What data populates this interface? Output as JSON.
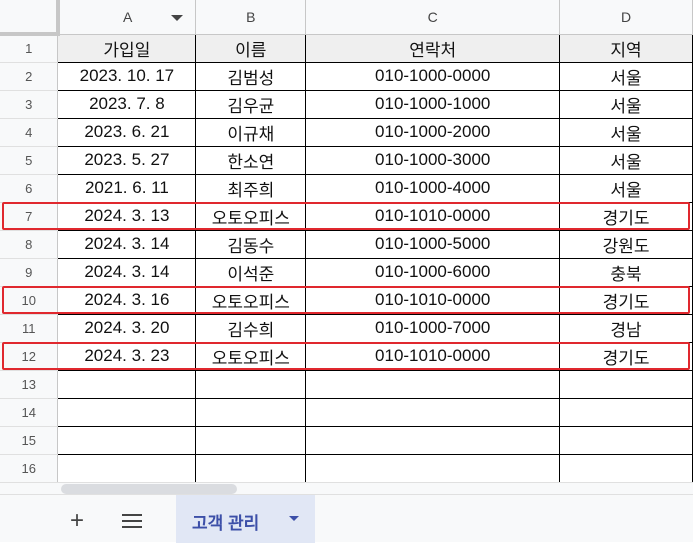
{
  "columns": [
    "A",
    "B",
    "C",
    "D"
  ],
  "rows": [
    [
      "가입일",
      "이름",
      "연락처",
      "지역"
    ],
    [
      "2023. 10. 17",
      "김범성",
      "010-1000-0000",
      "서울"
    ],
    [
      "2023. 7. 8",
      "김우균",
      "010-1000-1000",
      "서울"
    ],
    [
      "2023. 6. 21",
      "이규채",
      "010-1000-2000",
      "서울"
    ],
    [
      "2023. 5. 27",
      "한소연",
      "010-1000-3000",
      "서울"
    ],
    [
      "2021. 6. 11",
      "최주희",
      "010-1000-4000",
      "서울"
    ],
    [
      "2024. 3. 13",
      "오토오피스",
      "010-1010-0000",
      "경기도"
    ],
    [
      "2024. 3. 14",
      "김동수",
      "010-1000-5000",
      "강원도"
    ],
    [
      "2024. 3. 14",
      "이석준",
      "010-1000-6000",
      "충북"
    ],
    [
      "2024. 3. 16",
      "오토오피스",
      "010-1010-0000",
      "경기도"
    ],
    [
      "2024. 3. 20",
      "김수희",
      "010-1000-7000",
      "경남"
    ],
    [
      "2024. 3. 23",
      "오토오피스",
      "010-1010-0000",
      "경기도"
    ],
    [
      "",
      "",
      "",
      ""
    ],
    [
      "",
      "",
      "",
      ""
    ],
    [
      "",
      "",
      "",
      ""
    ],
    [
      "",
      "",
      "",
      ""
    ]
  ],
  "highlighted_rows": [
    7,
    10,
    12
  ],
  "highlight_color": "#e0282e",
  "sheet_tab": {
    "label": "고객 관리"
  },
  "add_sheet_icon": "+"
}
